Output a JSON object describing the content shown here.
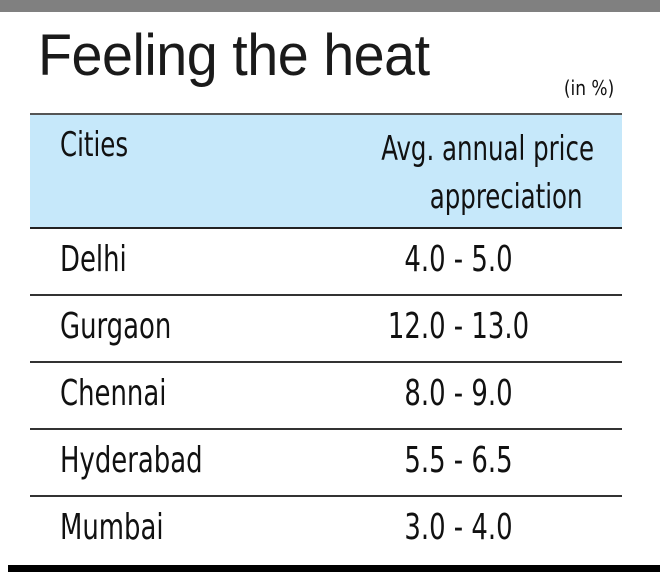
{
  "title": "Feeling the heat",
  "unit": "(in %)",
  "table": {
    "headers": {
      "city": "Cities",
      "value_line1": "Avg. annual price",
      "value_line2": "appreciation"
    },
    "rows": [
      {
        "city": "Delhi",
        "value": "4.0 - 5.0"
      },
      {
        "city": "Gurgaon",
        "value": "12.0 - 13.0"
      },
      {
        "city": "Chennai",
        "value": "8.0 - 9.0"
      },
      {
        "city": "Hyderabad",
        "value": "5.5 - 6.5"
      },
      {
        "city": "Mumbai",
        "value": "3.0 - 4.0"
      }
    ]
  },
  "colors": {
    "header_bg": "#c6e8fa",
    "top_bar": "#808080"
  }
}
